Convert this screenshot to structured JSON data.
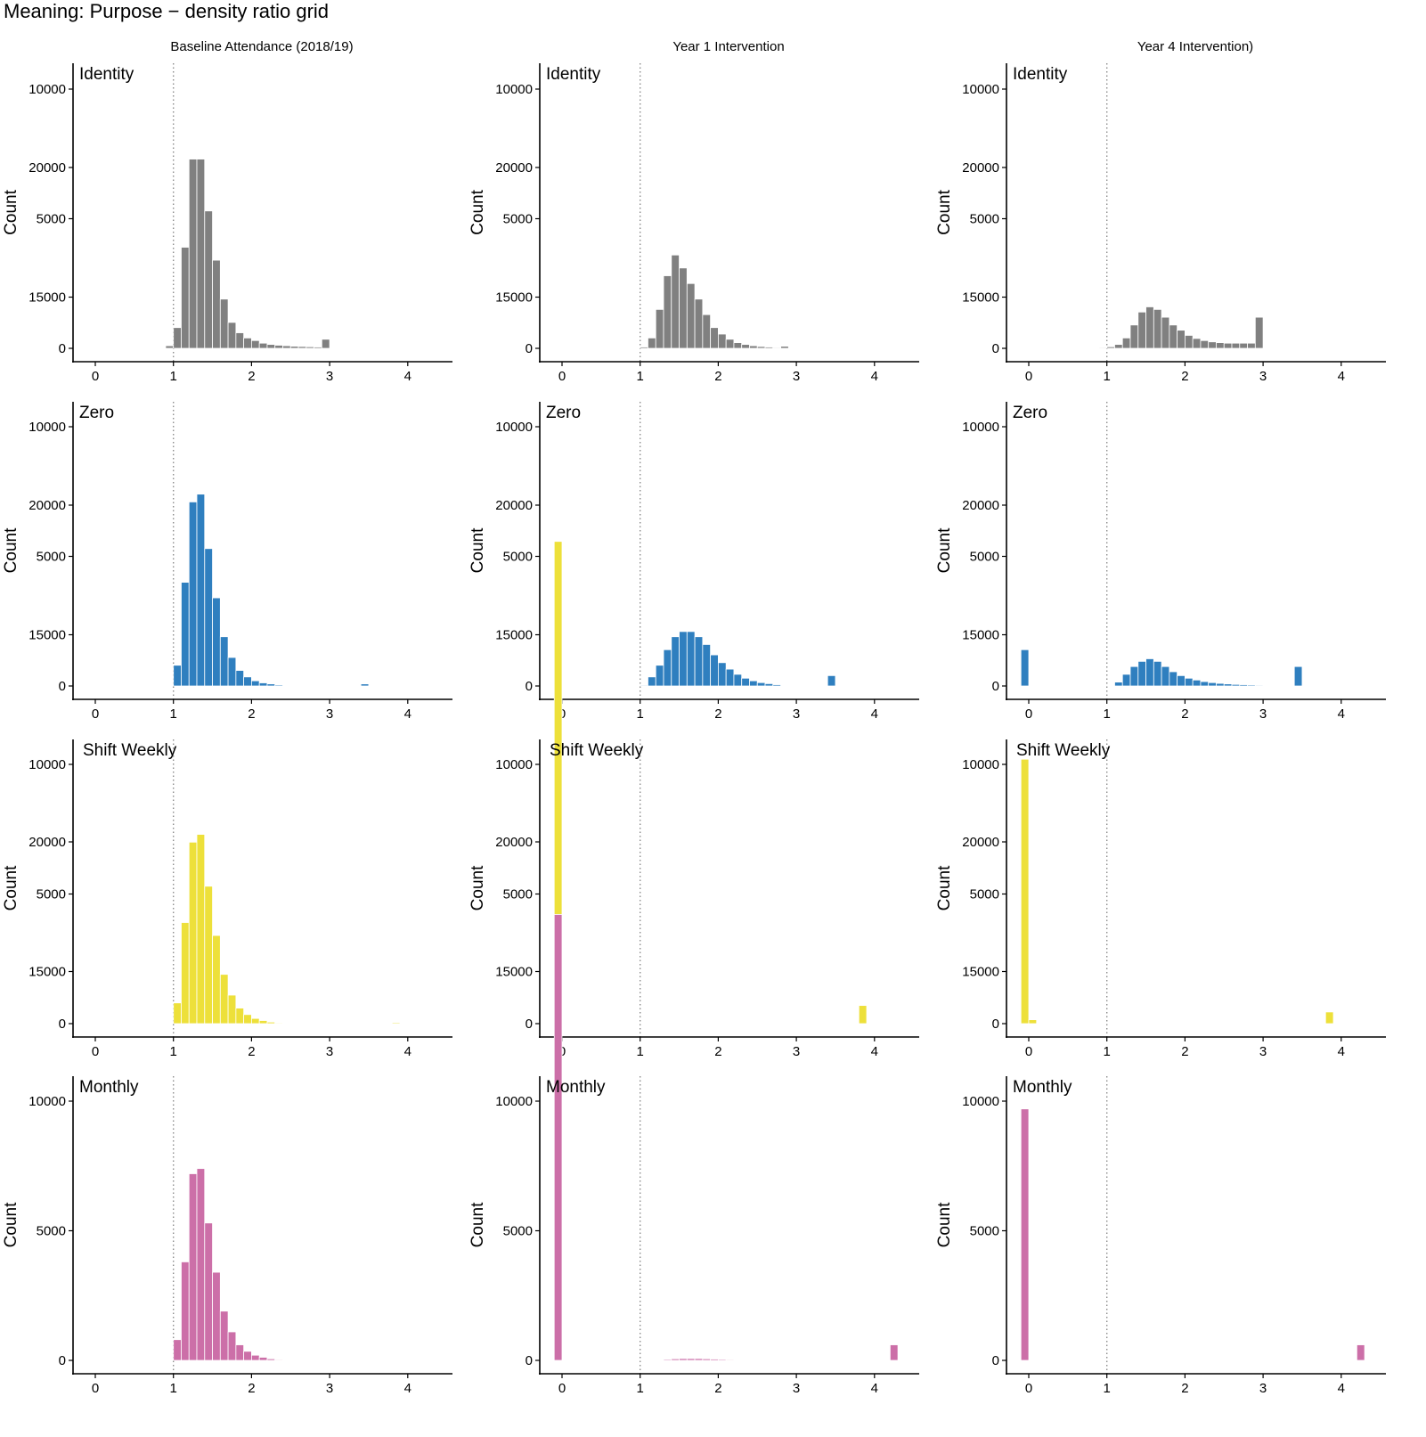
{
  "title": "Meaning: Purpose − density ratio grid",
  "column_titles": [
    "Baseline Attendance (2018/19)",
    "Year 1 Intervention",
    "Year 4 Intervention)"
  ],
  "colors": {
    "Identity": "#808080",
    "Zero": "#2f7fbf",
    "Shift Weekly": "#ede03a",
    "Monthly": "#cc6fa8",
    "reference_line": "#8c8c8c",
    "axis": "#000000"
  },
  "chart_data": {
    "type": "bar",
    "subtype": "faceted histogram grid",
    "ylabel": "Count",
    "xlim": [
      -0.25,
      4.5
    ],
    "ylim": [
      -800,
      22000
    ],
    "x_ticks": [
      0,
      1,
      2,
      3,
      4
    ],
    "y_ticks": [
      0,
      5000,
      10000,
      15000,
      20000
    ],
    "reference_line_x": 1,
    "bin_width": 0.1,
    "grid": false,
    "rows": [
      "Identity",
      "Zero",
      "Shift Weekly",
      "Monthly"
    ],
    "columns": [
      "Baseline Attendance (2018/19)",
      "Year 1 Intervention",
      "Year 4 Intervention)"
    ],
    "panels": [
      {
        "row": "Identity",
        "column": "Baseline Attendance (2018/19)",
        "bars": [
          {
            "x": 0.9,
            "y": 100
          },
          {
            "x": 1.0,
            "y": 800
          },
          {
            "x": 1.1,
            "y": 3900
          },
          {
            "x": 1.2,
            "y": 7300
          },
          {
            "x": 1.3,
            "y": 7300
          },
          {
            "x": 1.4,
            "y": 5300
          },
          {
            "x": 1.5,
            "y": 3400
          },
          {
            "x": 1.6,
            "y": 1900
          },
          {
            "x": 1.7,
            "y": 1000
          },
          {
            "x": 1.8,
            "y": 600
          },
          {
            "x": 1.9,
            "y": 400
          },
          {
            "x": 2.0,
            "y": 300
          },
          {
            "x": 2.1,
            "y": 200
          },
          {
            "x": 2.2,
            "y": 150
          },
          {
            "x": 2.3,
            "y": 120
          },
          {
            "x": 2.4,
            "y": 100
          },
          {
            "x": 2.5,
            "y": 80
          },
          {
            "x": 2.6,
            "y": 70
          },
          {
            "x": 2.7,
            "y": 60
          },
          {
            "x": 2.8,
            "y": 50
          },
          {
            "x": 2.9,
            "y": 350
          }
        ]
      },
      {
        "row": "Identity",
        "column": "Year 1 Intervention",
        "bars": [
          {
            "x": 1.0,
            "y": 50
          },
          {
            "x": 1.1,
            "y": 400
          },
          {
            "x": 1.2,
            "y": 1500
          },
          {
            "x": 1.3,
            "y": 2800
          },
          {
            "x": 1.4,
            "y": 3600
          },
          {
            "x": 1.5,
            "y": 3100
          },
          {
            "x": 1.6,
            "y": 2500
          },
          {
            "x": 1.7,
            "y": 1900
          },
          {
            "x": 1.8,
            "y": 1300
          },
          {
            "x": 1.9,
            "y": 800
          },
          {
            "x": 2.0,
            "y": 550
          },
          {
            "x": 2.1,
            "y": 350
          },
          {
            "x": 2.2,
            "y": 220
          },
          {
            "x": 2.3,
            "y": 150
          },
          {
            "x": 2.4,
            "y": 100
          },
          {
            "x": 2.5,
            "y": 70
          },
          {
            "x": 2.6,
            "y": 50
          },
          {
            "x": 2.7,
            "y": 30
          },
          {
            "x": 2.8,
            "y": 80
          }
        ]
      },
      {
        "row": "Identity",
        "column": "Year 4 Intervention)",
        "bars": [
          {
            "x": 0.8,
            "y": 20
          },
          {
            "x": 0.9,
            "y": 30
          },
          {
            "x": 1.0,
            "y": 60
          },
          {
            "x": 1.1,
            "y": 150
          },
          {
            "x": 1.2,
            "y": 400
          },
          {
            "x": 1.3,
            "y": 900
          },
          {
            "x": 1.4,
            "y": 1400
          },
          {
            "x": 1.5,
            "y": 1600
          },
          {
            "x": 1.6,
            "y": 1500
          },
          {
            "x": 1.7,
            "y": 1200
          },
          {
            "x": 1.8,
            "y": 900
          },
          {
            "x": 1.9,
            "y": 700
          },
          {
            "x": 2.0,
            "y": 500
          },
          {
            "x": 2.1,
            "y": 380
          },
          {
            "x": 2.2,
            "y": 300
          },
          {
            "x": 2.3,
            "y": 250
          },
          {
            "x": 2.4,
            "y": 220
          },
          {
            "x": 2.5,
            "y": 200
          },
          {
            "x": 2.6,
            "y": 200
          },
          {
            "x": 2.7,
            "y": 200
          },
          {
            "x": 2.8,
            "y": 200
          },
          {
            "x": 2.9,
            "y": 1200
          }
        ]
      },
      {
        "row": "Zero",
        "column": "Baseline Attendance (2018/19)",
        "bars": [
          {
            "x": 1.0,
            "y": 800
          },
          {
            "x": 1.1,
            "y": 4000
          },
          {
            "x": 1.2,
            "y": 7100
          },
          {
            "x": 1.3,
            "y": 7400
          },
          {
            "x": 1.4,
            "y": 5300
          },
          {
            "x": 1.5,
            "y": 3400
          },
          {
            "x": 1.6,
            "y": 1900
          },
          {
            "x": 1.7,
            "y": 1100
          },
          {
            "x": 1.8,
            "y": 600
          },
          {
            "x": 1.9,
            "y": 350
          },
          {
            "x": 2.0,
            "y": 200
          },
          {
            "x": 2.1,
            "y": 120
          },
          {
            "x": 2.2,
            "y": 80
          },
          {
            "x": 2.3,
            "y": 40
          },
          {
            "x": 3.4,
            "y": 80
          }
        ]
      },
      {
        "row": "Zero",
        "column": "Year 1 Intervention",
        "bars": [
          {
            "x": -0.1,
            "y": 3100
          },
          {
            "x": 1.0,
            "y": 30
          },
          {
            "x": 1.1,
            "y": 350
          },
          {
            "x": 1.2,
            "y": 800
          },
          {
            "x": 1.3,
            "y": 1400
          },
          {
            "x": 1.4,
            "y": 1900
          },
          {
            "x": 1.5,
            "y": 2100
          },
          {
            "x": 1.6,
            "y": 2100
          },
          {
            "x": 1.7,
            "y": 1900
          },
          {
            "x": 1.8,
            "y": 1600
          },
          {
            "x": 1.9,
            "y": 1200
          },
          {
            "x": 2.0,
            "y": 900
          },
          {
            "x": 2.1,
            "y": 650
          },
          {
            "x": 2.2,
            "y": 450
          },
          {
            "x": 2.3,
            "y": 300
          },
          {
            "x": 2.4,
            "y": 200
          },
          {
            "x": 2.5,
            "y": 130
          },
          {
            "x": 2.6,
            "y": 90
          },
          {
            "x": 2.7,
            "y": 50
          },
          {
            "x": 3.4,
            "y": 400
          }
        ]
      },
      {
        "row": "Zero",
        "column": "Year 4 Intervention)",
        "bars": [
          {
            "x": -0.1,
            "y": 1400
          },
          {
            "x": 1.1,
            "y": 150
          },
          {
            "x": 1.2,
            "y": 450
          },
          {
            "x": 1.3,
            "y": 750
          },
          {
            "x": 1.4,
            "y": 950
          },
          {
            "x": 1.5,
            "y": 1050
          },
          {
            "x": 1.6,
            "y": 950
          },
          {
            "x": 1.7,
            "y": 750
          },
          {
            "x": 1.8,
            "y": 550
          },
          {
            "x": 1.9,
            "y": 400
          },
          {
            "x": 2.0,
            "y": 300
          },
          {
            "x": 2.1,
            "y": 230
          },
          {
            "x": 2.2,
            "y": 170
          },
          {
            "x": 2.3,
            "y": 130
          },
          {
            "x": 2.4,
            "y": 100
          },
          {
            "x": 2.5,
            "y": 80
          },
          {
            "x": 2.6,
            "y": 60
          },
          {
            "x": 2.7,
            "y": 50
          },
          {
            "x": 2.8,
            "y": 40
          },
          {
            "x": 2.9,
            "y": 30
          },
          {
            "x": 3.0,
            "y": 25
          },
          {
            "x": 3.1,
            "y": 20
          },
          {
            "x": 3.4,
            "y": 750
          }
        ]
      },
      {
        "row": "Shift Weekly",
        "column": "Baseline Attendance (2018/19)",
        "bars": [
          {
            "x": 1.0,
            "y": 800
          },
          {
            "x": 1.1,
            "y": 3900
          },
          {
            "x": 1.2,
            "y": 7000
          },
          {
            "x": 1.3,
            "y": 7300
          },
          {
            "x": 1.4,
            "y": 5300
          },
          {
            "x": 1.5,
            "y": 3400
          },
          {
            "x": 1.6,
            "y": 1900
          },
          {
            "x": 1.7,
            "y": 1100
          },
          {
            "x": 1.8,
            "y": 600
          },
          {
            "x": 1.9,
            "y": 350
          },
          {
            "x": 2.0,
            "y": 200
          },
          {
            "x": 2.1,
            "y": 120
          },
          {
            "x": 2.2,
            "y": 60
          },
          {
            "x": 2.3,
            "y": 30
          },
          {
            "x": 3.8,
            "y": 40
          }
        ]
      },
      {
        "row": "Shift Weekly",
        "column": "Year 1 Intervention",
        "bars": [
          {
            "x": -0.1,
            "y": 18600
          },
          {
            "x": 3.8,
            "y": 700
          }
        ]
      },
      {
        "row": "Shift Weekly",
        "column": "Year 4 Intervention)",
        "bars": [
          {
            "x": -0.1,
            "y": 10200
          },
          {
            "x": 0.0,
            "y": 150
          },
          {
            "x": 3.8,
            "y": 450
          }
        ]
      },
      {
        "row": "Monthly",
        "column": "Baseline Attendance (2018/19)",
        "bars": [
          {
            "x": 1.0,
            "y": 800
          },
          {
            "x": 1.1,
            "y": 3800
          },
          {
            "x": 1.2,
            "y": 7200
          },
          {
            "x": 1.3,
            "y": 7400
          },
          {
            "x": 1.4,
            "y": 5300
          },
          {
            "x": 1.5,
            "y": 3400
          },
          {
            "x": 1.6,
            "y": 1900
          },
          {
            "x": 1.7,
            "y": 1100
          },
          {
            "x": 1.8,
            "y": 600
          },
          {
            "x": 1.9,
            "y": 350
          },
          {
            "x": 2.0,
            "y": 200
          },
          {
            "x": 2.1,
            "y": 120
          },
          {
            "x": 2.2,
            "y": 60
          },
          {
            "x": 2.3,
            "y": 30
          }
        ]
      },
      {
        "row": "Monthly",
        "column": "Year 1 Intervention",
        "bars": [
          {
            "x": -0.1,
            "y": 17200
          },
          {
            "x": 1.3,
            "y": 40
          },
          {
            "x": 1.4,
            "y": 60
          },
          {
            "x": 1.5,
            "y": 70
          },
          {
            "x": 1.6,
            "y": 70
          },
          {
            "x": 1.7,
            "y": 70
          },
          {
            "x": 1.8,
            "y": 60
          },
          {
            "x": 1.9,
            "y": 50
          },
          {
            "x": 2.0,
            "y": 40
          },
          {
            "x": 2.1,
            "y": 30
          },
          {
            "x": 4.2,
            "y": 600
          }
        ]
      },
      {
        "row": "Monthly",
        "column": "Year 4 Intervention)",
        "bars": [
          {
            "x": -0.1,
            "y": 9700
          },
          {
            "x": 4.2,
            "y": 600
          }
        ]
      }
    ]
  }
}
